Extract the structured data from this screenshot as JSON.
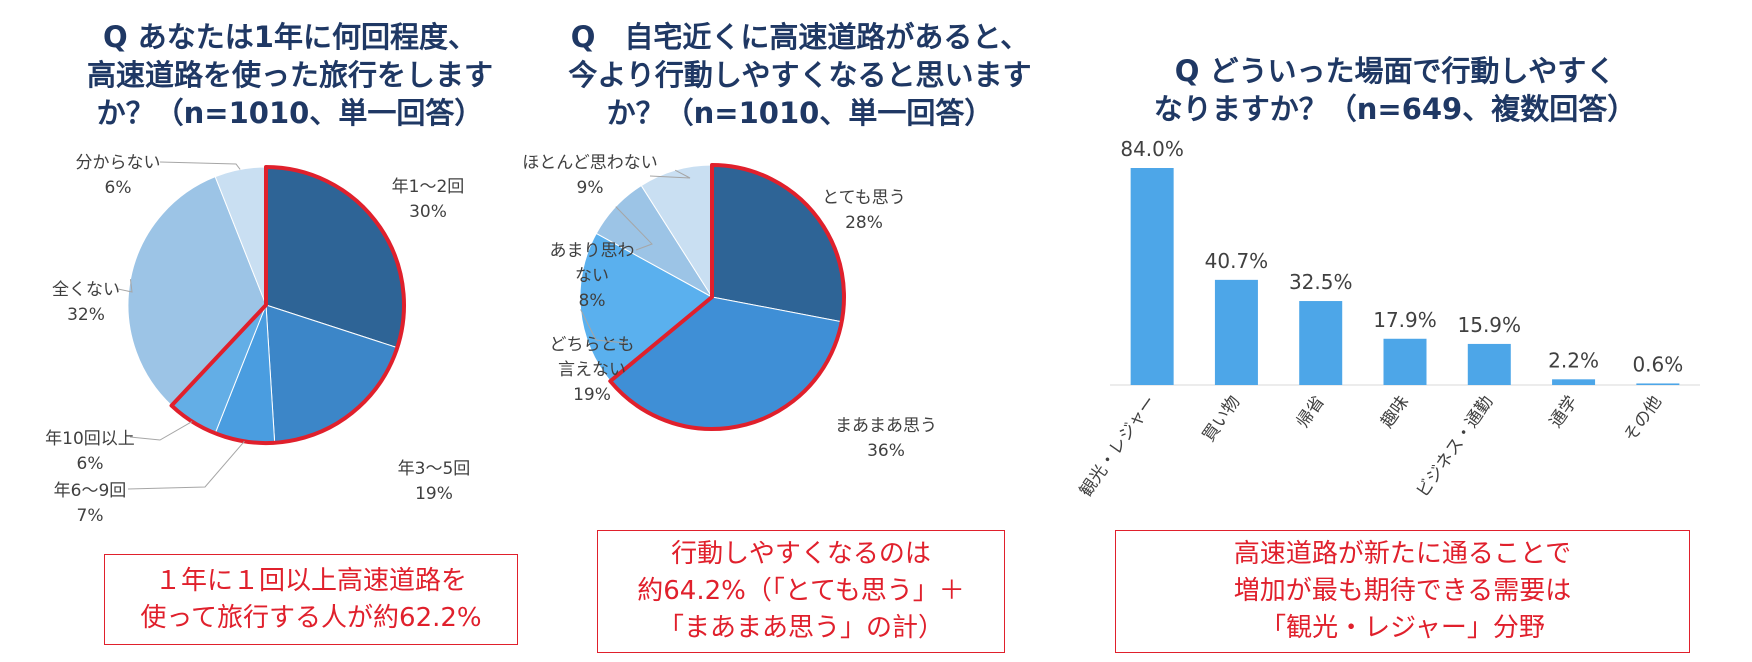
{
  "chart_data": [
    {
      "type": "pie",
      "title": "Q あなたは1年に何回程度、\n高速道路を使った旅行をします\nか？（n=1010、単一回答）",
      "slices": [
        {
          "label": "年1～2回",
          "value": 30,
          "pct_label": "30%",
          "color": "#2e6496",
          "highlighted": true
        },
        {
          "label": "年3～5回",
          "value": 19,
          "pct_label": "19%",
          "color": "#3c86c8",
          "highlighted": true
        },
        {
          "label": "年6～9回",
          "value": 7,
          "pct_label": "7%",
          "color": "#4a9de0",
          "highlighted": true
        },
        {
          "label": "年10回以上",
          "value": 6,
          "pct_label": "6%",
          "color": "#63aee6",
          "highlighted": true
        },
        {
          "label": "全くない",
          "value": 32,
          "pct_label": "32%",
          "color": "#9cc4e6",
          "highlighted": false
        },
        {
          "label": "分からない",
          "value": 6,
          "pct_label": "6%",
          "color": "#c9dff2",
          "highlighted": false
        }
      ],
      "callout": "１年に１回以上高速道路を\n使って旅行する人が約62.2%"
    },
    {
      "type": "pie",
      "title": "Q　自宅近くに高速道路があると、\n今より行動しやすくなると思います\nか？（n=1010、単一回答）",
      "slices": [
        {
          "label": "とても思う",
          "value": 28,
          "pct_label": "28%",
          "color": "#2e6496",
          "highlighted": true
        },
        {
          "label": "まあまあ思う",
          "value": 36,
          "pct_label": "36%",
          "color": "#3f8fd6",
          "highlighted": true
        },
        {
          "label": "どちらとも\n言えない",
          "value": 19,
          "pct_label": "19%",
          "color": "#5ab0ee",
          "highlighted": false
        },
        {
          "label": "あまり思わ\nない",
          "value": 8,
          "pct_label": "8%",
          "color": "#9cc4e6",
          "highlighted": false
        },
        {
          "label": "ほとんど思わない",
          "value": 9,
          "pct_label": "9%",
          "color": "#c9dff2",
          "highlighted": false
        }
      ],
      "callout": "行動しやすくなるのは\n約64.2%（「とても思う」＋\n「まあまあ思う」の計）"
    },
    {
      "type": "bar",
      "title": "Q どういった場面で行動しやすく\nなりますか？（n=649、複数回答）",
      "categories": [
        "観光・レジャー",
        "買い物",
        "帰省",
        "趣味",
        "ビジネス・通勤",
        "通学",
        "その他"
      ],
      "values": [
        84.0,
        40.7,
        32.5,
        17.9,
        15.9,
        2.2,
        0.6
      ],
      "value_labels": [
        "84.0%",
        "40.7%",
        "32.5%",
        "17.9%",
        "15.9%",
        "2.2%",
        "0.6%"
      ],
      "ylim": [
        0,
        84
      ],
      "bar_color": "#4da6e8",
      "grid": false,
      "callout": "高速道路が新たに通ることで\n増加が最も期待できる需要は\n「観光・レジャー」分野"
    }
  ],
  "colors": {
    "title": "#1f3864",
    "highlight": "#e0202c",
    "label": "#404040"
  }
}
